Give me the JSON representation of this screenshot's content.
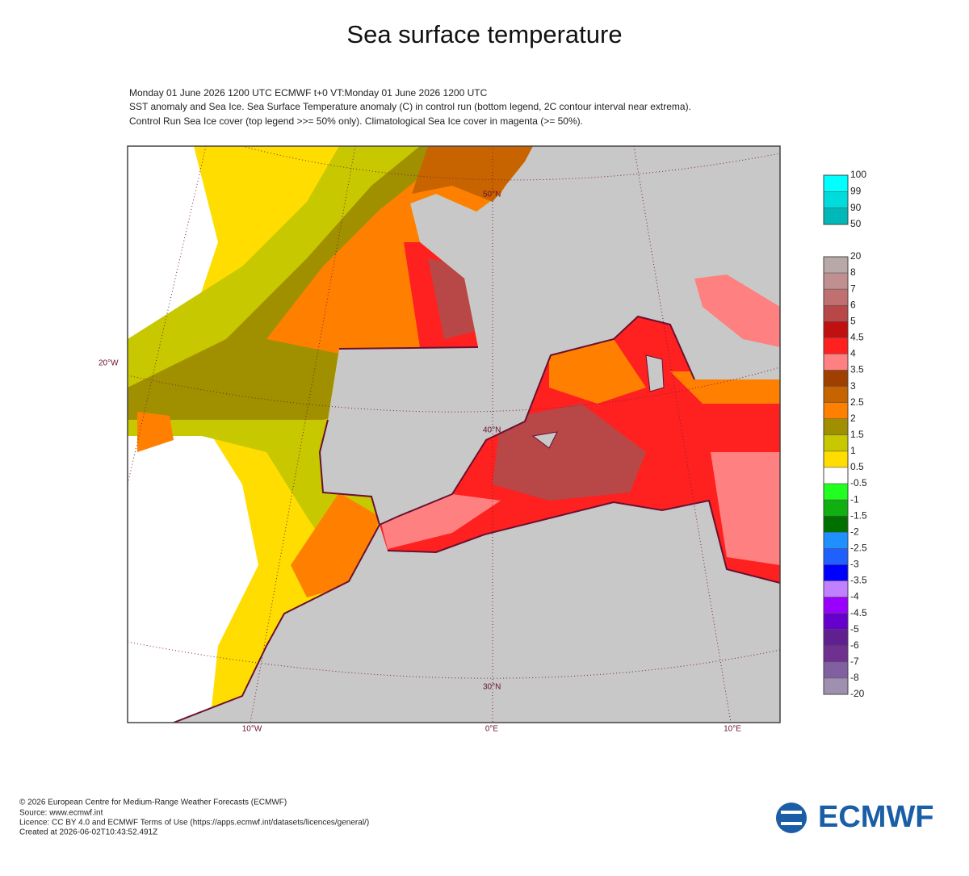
{
  "title": "Sea surface temperature",
  "header": {
    "lines": [
      "Monday 01 June 2026 1200 UTC  ECMWF t+0  VT:Monday 01 June 2026 1200 UTC",
      "SST anomaly and Sea Ice. Sea Surface Temperature anomaly (C) in control run (bottom legend, 2C contour interval near extrema).",
      "Control Run Sea Ice cover (top legend >>= 50% only). Climatological Sea Ice cover in magenta (>= 50%)."
    ]
  },
  "map": {
    "lat_labels": [
      "50°N",
      "40°N",
      "30°N"
    ],
    "lon_labels": [
      "10°W",
      "0°E",
      "10°E"
    ],
    "side_label": "20°W"
  },
  "ice_legend": {
    "labels": [
      100,
      99,
      90,
      50
    ],
    "colors": [
      "#00ffff",
      "#00dcdc",
      "#00b8b8"
    ]
  },
  "sst_legend": {
    "labels": [
      20,
      8,
      7,
      6,
      5,
      4.5,
      4,
      3.5,
      3,
      2.5,
      2,
      1.5,
      1,
      0.5,
      -0.5,
      -1,
      -1.5,
      -2,
      -2.5,
      -3,
      -3.5,
      -4,
      -4.5,
      -5,
      -6,
      -7,
      -8,
      -20
    ],
    "colors": [
      "#b8a8a8",
      "#c09090",
      "#c07070",
      "#b84848",
      "#c01010",
      "#ff2020",
      "#ff8080",
      "#a04000",
      "#c86400",
      "#ff8000",
      "#a09000",
      "#c8c800",
      "#ffdd00",
      "#ffffff",
      "#20ff20",
      "#10b010",
      "#007000",
      "#1e90ff",
      "#2060ff",
      "#0000ff",
      "#c080ff",
      "#9900ff",
      "#6600cc",
      "#602090",
      "#703090",
      "#8060a0",
      "#a090b0"
    ]
  },
  "footer": {
    "lines": [
      "© 2026 European Centre for Medium-Range Weather Forecasts (ECMWF)",
      "Source: www.ecmwf.int",
      "Licence: CC BY 4.0 and ECMWF Terms of Use (https://apps.ecmwf.int/datasets/licences/general/)",
      "Created at 2026-06-02T10:43:52.491Z"
    ]
  },
  "logo": "ECMWF"
}
